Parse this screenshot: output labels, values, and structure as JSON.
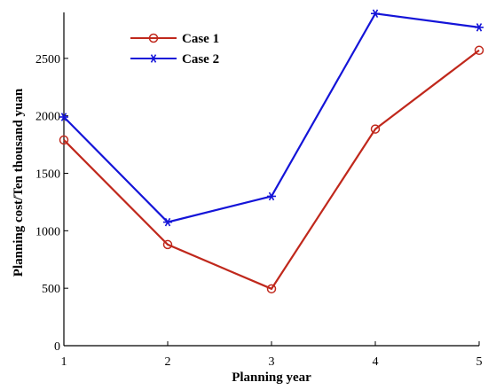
{
  "chart_data": {
    "type": "line",
    "x": [
      1,
      2,
      3,
      4,
      5
    ],
    "xlabel": "Planning year",
    "ylabel": "Planning cost/Ten thousand yuan",
    "xlim": [
      1,
      5
    ],
    "ylim": [
      0,
      2900
    ],
    "xticks": [
      "1",
      "2",
      "3",
      "4",
      "5"
    ],
    "yticks": [
      "0",
      "500",
      "1000",
      "1500",
      "2000",
      "2500"
    ],
    "ytick_values": [
      0,
      500,
      1000,
      1500,
      2000,
      2500
    ],
    "grid": false,
    "legend_position": "top-left",
    "series": [
      {
        "name": "Case 1",
        "values": [
          1790,
          880,
          495,
          1885,
          2570
        ],
        "color": "#c0281c",
        "marker": "circle"
      },
      {
        "name": "Case 2",
        "values": [
          1990,
          1075,
          1300,
          2890,
          2770
        ],
        "color": "#1414d8",
        "marker": "asterisk"
      }
    ]
  }
}
